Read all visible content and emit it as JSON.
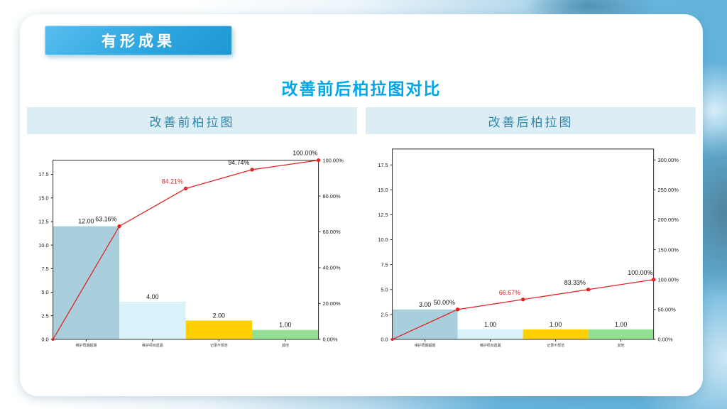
{
  "slide": {
    "badge_label": "有形成果",
    "title": "改善前后柏拉图对比"
  },
  "panels": {
    "before": {
      "header": "改善前柏拉图"
    },
    "after": {
      "header": "改善后柏拉图"
    }
  },
  "colors": {
    "title_blue": "#00a6e9",
    "badge_text": "#ffffff",
    "panel_header_bg": "#dcedf4",
    "panel_header_text": "#2e86ab",
    "bar_colors": [
      "#a9cfdd",
      "#daf3fa",
      "#ffd105",
      "#92e093"
    ],
    "line_red": "#e02424",
    "axis_text": "#222222",
    "label_dark": "#141414"
  },
  "chart_data": [
    {
      "type": "bar",
      "subtype": "pareto (bars + cumulative % line)",
      "title": "改善前柏拉图",
      "categories": [
        "维护周期超期",
        "维护项目遗漏",
        "记录不规范",
        "其他"
      ],
      "values": [
        12,
        4,
        2,
        1
      ],
      "bar_labels": [
        "12.00",
        "4.00",
        "2.00",
        "1.00"
      ],
      "cumulative_pct": [
        63.16,
        84.21,
        94.74,
        100.0
      ],
      "cumulative_labels": [
        "63.16%",
        "84.21%",
        "94.74%",
        "100.00%"
      ],
      "highlight_label_index": 1,
      "left_axis_ticks": [
        "0.0",
        "2.5",
        "5.0",
        "7.5",
        "10.0",
        "12.5",
        "15.0",
        "17.5"
      ],
      "right_axis_ticks": [
        "0.00%",
        "20.00%",
        "40.00%",
        "60.00%",
        "80.00%",
        "100.00%"
      ],
      "left_axis_max": 19.0,
      "units_per_100pct": 19.0,
      "grid": "off",
      "legend": "none"
    },
    {
      "type": "bar",
      "subtype": "pareto (bars + cumulative % line)",
      "title": "改善后柏拉图",
      "categories": [
        "维护周期超期",
        "维护项目遗漏",
        "记录不规范",
        "其他"
      ],
      "values": [
        3,
        1,
        1,
        1
      ],
      "bar_labels": [
        "3.00",
        "1.00",
        "1.00",
        "1.00"
      ],
      "cumulative_pct": [
        50.0,
        66.67,
        83.33,
        100.0
      ],
      "cumulative_labels": [
        "50.00%",
        "66.67%",
        "83.33%",
        "100.00%"
      ],
      "highlight_label_index": 1,
      "left_axis_ticks": [
        "0.0",
        "2.5",
        "5.0",
        "7.5",
        "10.0",
        "12.5",
        "15.0",
        "17.5"
      ],
      "right_axis_ticks": [
        "0.00%",
        "50.00%",
        "100.00%",
        "150.00%",
        "200.00%",
        "250.00%",
        "300.00%"
      ],
      "left_axis_max": 19.1,
      "units_per_100pct": 6.0,
      "grid": "off",
      "legend": "none"
    }
  ]
}
